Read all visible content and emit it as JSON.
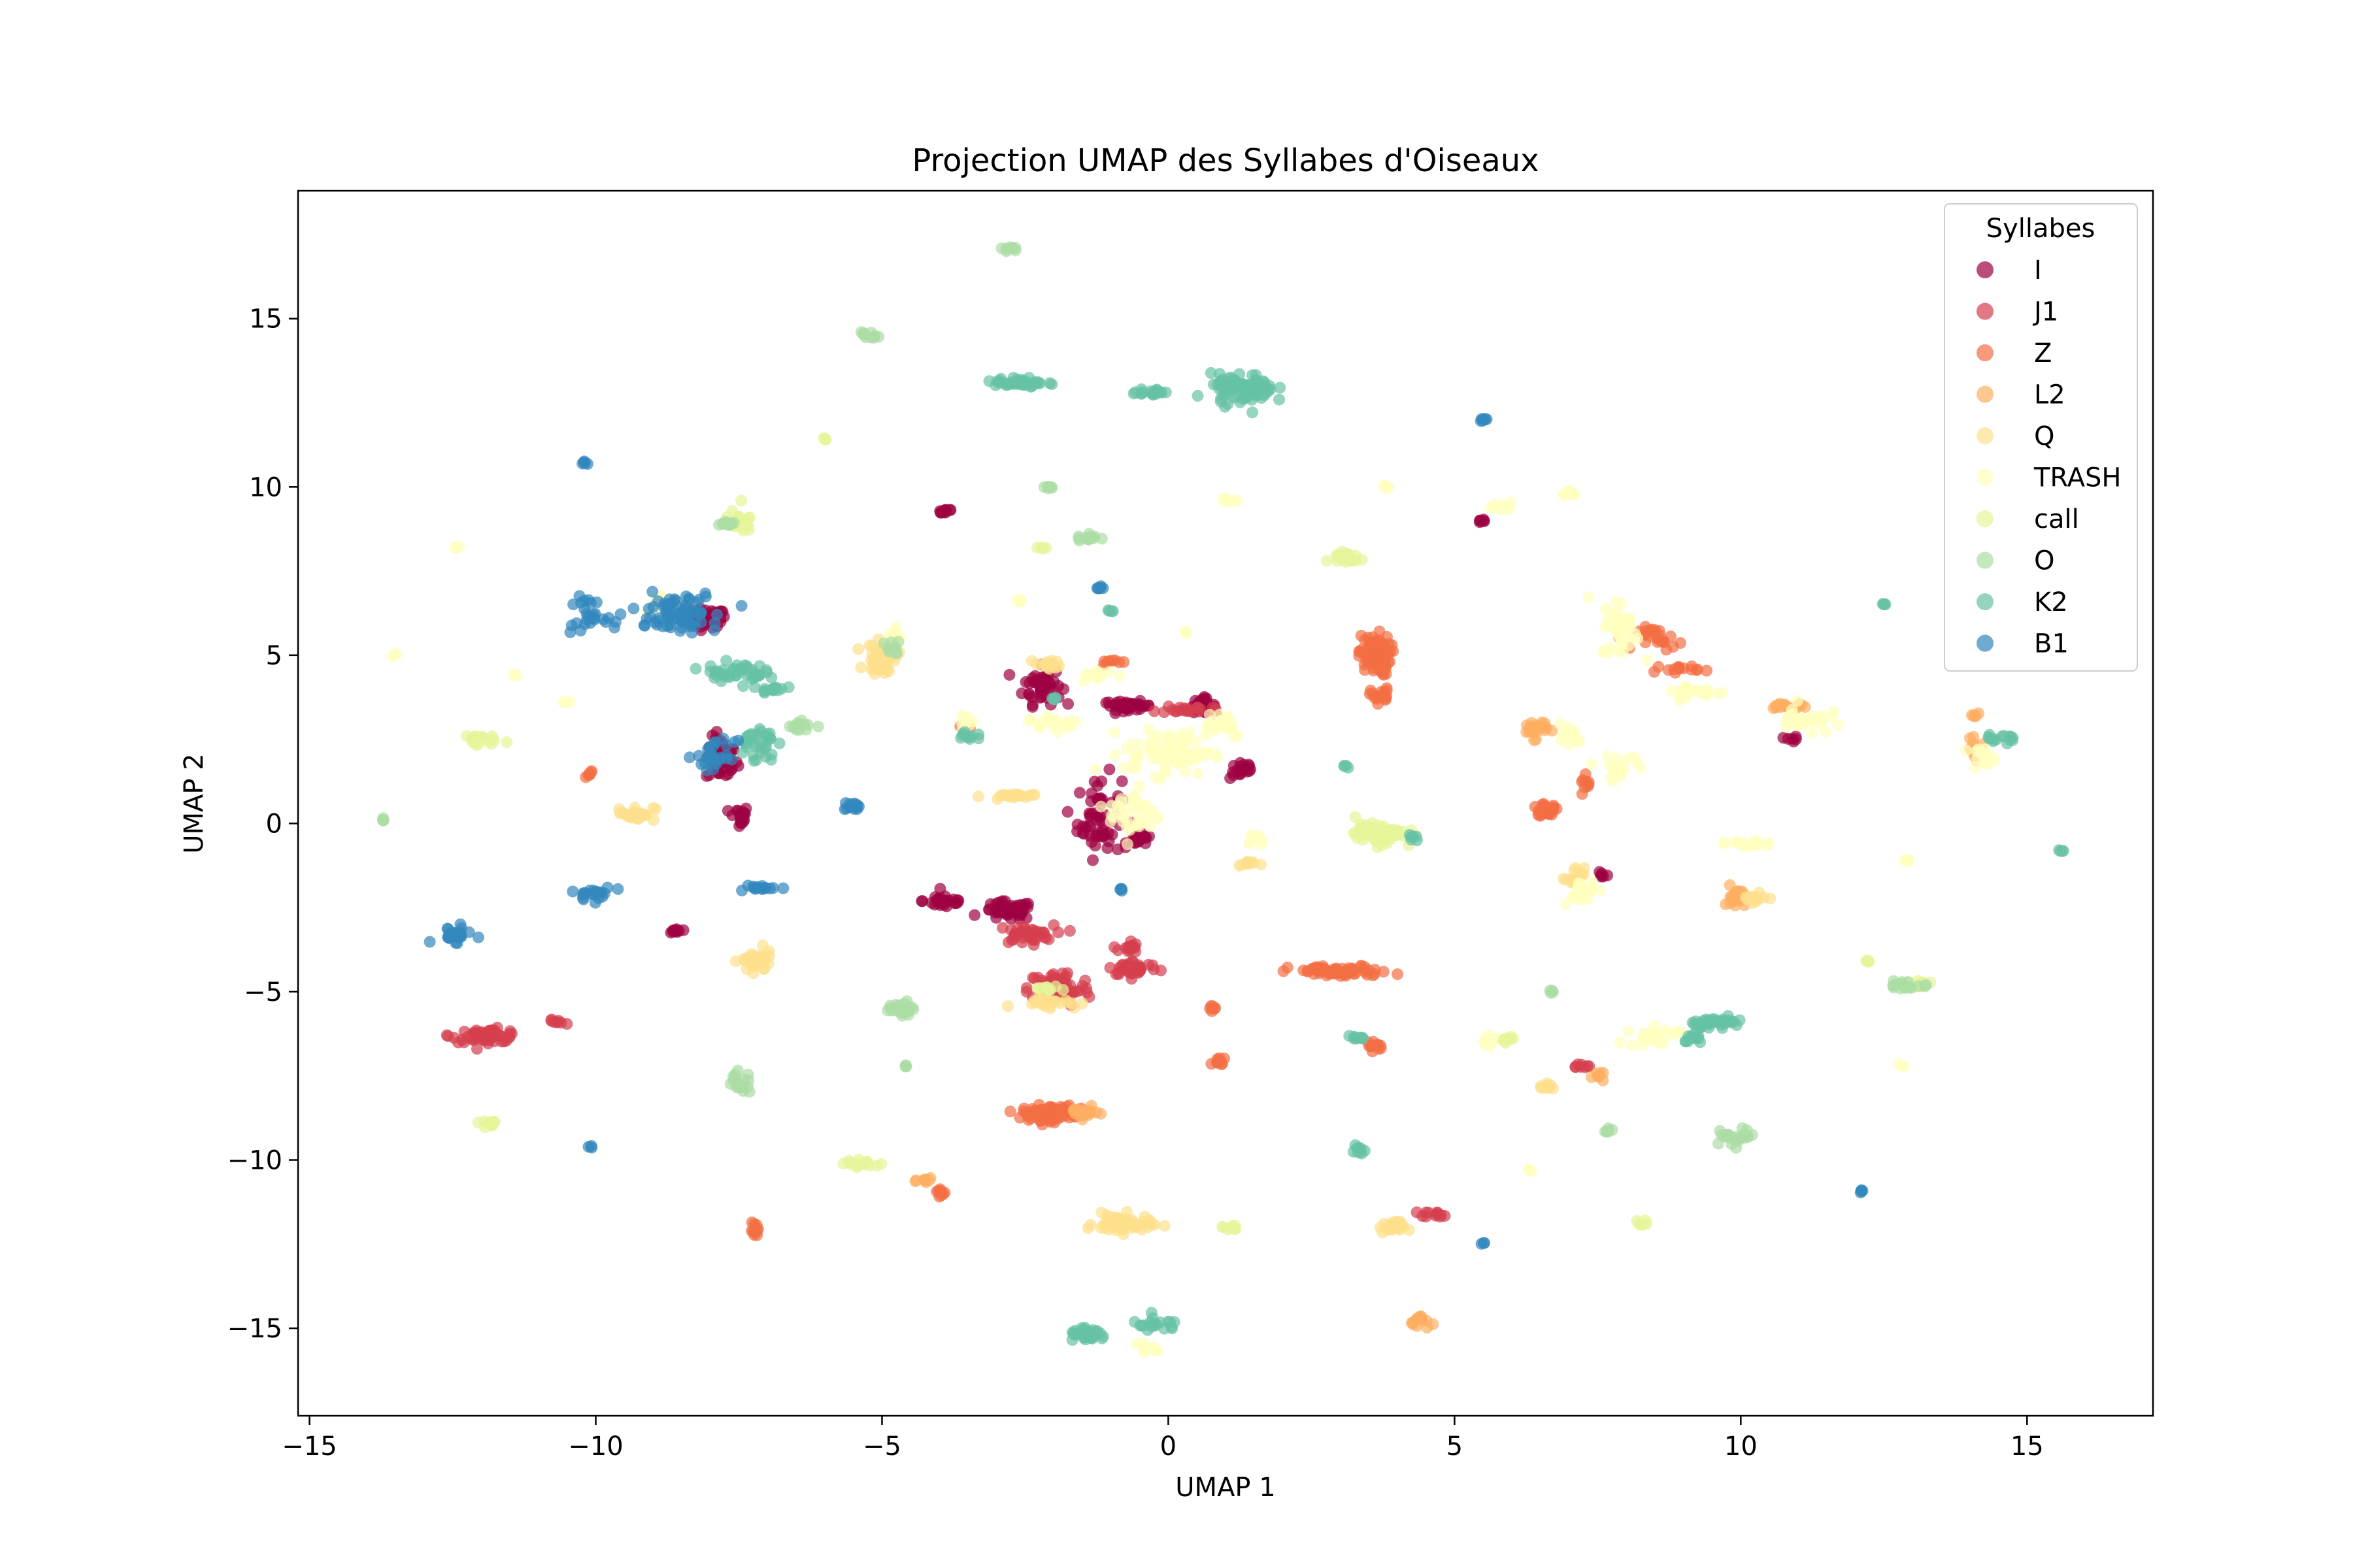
{
  "chart_data": {
    "type": "scatter",
    "title": "Projection UMAP des Syllabes d'Oiseaux",
    "xlabel": "UMAP 1",
    "ylabel": "UMAP 2",
    "xlim": [
      -15.2,
      17.2
    ],
    "ylim": [
      -17.6,
      18.8
    ],
    "x_ticks": [
      -15,
      -10,
      -5,
      0,
      5,
      10,
      15
    ],
    "x_tick_labels": [
      "−15",
      "−10",
      "−5",
      "0",
      "5",
      "10",
      "15"
    ],
    "y_ticks": [
      -15,
      -10,
      -5,
      0,
      5,
      10,
      15
    ],
    "y_tick_labels": [
      "−15",
      "−10",
      "−5",
      "0",
      "5",
      "10",
      "15"
    ],
    "grid": false,
    "legend": {
      "title": "Syllabes",
      "placement": "top-right"
    },
    "series": [
      {
        "name": "I",
        "color": "#9e0142",
        "clusters": [
          [
            -8.1,
            6.1,
            0.35,
            0.25,
            70
          ],
          [
            -7.8,
            1.9,
            0.25,
            0.6,
            50
          ],
          [
            -7.5,
            0.2,
            0.15,
            0.3,
            20
          ],
          [
            -3.9,
            9.3,
            0.15,
            0.1,
            12
          ],
          [
            -2.2,
            4.1,
            0.3,
            0.5,
            50
          ],
          [
            -1.2,
            0.2,
            0.35,
            1.1,
            60
          ],
          [
            -0.7,
            3.5,
            0.4,
            0.12,
            40
          ],
          [
            0.6,
            3.5,
            0.2,
            0.2,
            25
          ],
          [
            1.3,
            1.6,
            0.2,
            0.25,
            20
          ],
          [
            -3.9,
            -2.3,
            0.35,
            0.2,
            30
          ],
          [
            -2.8,
            -2.6,
            0.4,
            0.25,
            50
          ],
          [
            -0.5,
            -0.5,
            0.2,
            0.15,
            20
          ],
          [
            -8.6,
            -3.2,
            0.1,
            0.08,
            10
          ],
          [
            5.5,
            9.0,
            0.1,
            0.05,
            6
          ],
          [
            10.9,
            2.5,
            0.1,
            0.08,
            6
          ],
          [
            7.6,
            -1.5,
            0.08,
            0.1,
            6
          ]
        ]
      },
      {
        "name": "J1",
        "color": "#d53e4f",
        "clusters": [
          [
            -11.9,
            -6.3,
            0.55,
            0.18,
            55
          ],
          [
            -10.7,
            -5.9,
            0.15,
            0.06,
            8
          ],
          [
            -2.5,
            -3.3,
            0.45,
            0.25,
            40
          ],
          [
            -1.9,
            -4.9,
            0.5,
            0.5,
            60
          ],
          [
            -0.6,
            -4.3,
            0.4,
            0.2,
            40
          ],
          [
            -0.7,
            -3.7,
            0.15,
            0.2,
            15
          ],
          [
            0.3,
            3.4,
            0.4,
            0.1,
            20
          ],
          [
            4.7,
            -11.6,
            0.25,
            0.08,
            12
          ],
          [
            7.2,
            -7.2,
            0.15,
            0.06,
            8
          ]
        ]
      },
      {
        "name": "Z",
        "color": "#f46d43",
        "clusters": [
          [
            3.6,
            5.0,
            0.25,
            0.55,
            90
          ],
          [
            3.7,
            3.8,
            0.15,
            0.2,
            20
          ],
          [
            3.0,
            -4.4,
            0.8,
            0.15,
            70
          ],
          [
            -2.1,
            -8.6,
            0.4,
            0.2,
            90
          ],
          [
            -7.2,
            -12.1,
            0.08,
            0.2,
            10
          ],
          [
            -4.0,
            -11.0,
            0.1,
            0.15,
            8
          ],
          [
            3.6,
            -6.6,
            0.12,
            0.12,
            12
          ],
          [
            0.9,
            -7.1,
            0.12,
            0.15,
            12
          ],
          [
            0.8,
            -5.5,
            0.08,
            0.1,
            6
          ],
          [
            -10.1,
            1.5,
            0.1,
            0.08,
            6
          ],
          [
            8.6,
            5.5,
            0.35,
            0.3,
            25
          ],
          [
            8.9,
            4.6,
            0.35,
            0.1,
            15
          ],
          [
            6.6,
            0.4,
            0.2,
            0.15,
            30
          ],
          [
            7.3,
            1.2,
            0.1,
            0.2,
            10
          ],
          [
            -1.0,
            4.8,
            0.2,
            0.08,
            8
          ],
          [
            -3.5,
            2.9,
            0.1,
            0.08,
            6
          ]
        ]
      },
      {
        "name": "L2",
        "color": "#fdae61",
        "clusters": [
          [
            6.4,
            2.8,
            0.2,
            0.25,
            25
          ],
          [
            9.9,
            -2.2,
            0.15,
            0.3,
            20
          ],
          [
            4.4,
            -14.8,
            0.15,
            0.2,
            15
          ],
          [
            -1.5,
            -8.6,
            0.25,
            0.15,
            20
          ],
          [
            10.8,
            3.5,
            0.35,
            0.1,
            18
          ],
          [
            14.1,
            2.2,
            0.15,
            0.25,
            12
          ],
          [
            7.5,
            -7.5,
            0.15,
            0.1,
            8
          ],
          [
            -4.2,
            -10.6,
            0.15,
            0.1,
            8
          ],
          [
            14.1,
            3.2,
            0.06,
            0.06,
            5
          ]
        ]
      },
      {
        "name": "Q",
        "color": "#fee08b",
        "clusters": [
          [
            -7.2,
            -4.1,
            0.25,
            0.3,
            40
          ],
          [
            -0.8,
            -11.9,
            0.45,
            0.25,
            60
          ],
          [
            -5.0,
            4.9,
            0.25,
            0.4,
            50
          ],
          [
            -9.3,
            0.3,
            0.3,
            0.2,
            25
          ],
          [
            -2.1,
            -5.3,
            0.5,
            0.15,
            25
          ],
          [
            -2.8,
            0.8,
            0.4,
            0.08,
            20
          ],
          [
            10.2,
            -2.2,
            0.2,
            0.2,
            15
          ],
          [
            3.9,
            -12.0,
            0.2,
            0.15,
            20
          ],
          [
            1.4,
            -1.2,
            0.15,
            0.1,
            10
          ],
          [
            7.1,
            -1.6,
            0.15,
            0.25,
            15
          ],
          [
            -2.1,
            4.7,
            0.2,
            0.15,
            15
          ],
          [
            6.6,
            -7.8,
            0.15,
            0.1,
            10
          ]
        ]
      },
      {
        "name": "TRASH",
        "color": "#ffffbf",
        "clusters": [
          [
            0.0,
            2.1,
            0.7,
            0.6,
            80
          ],
          [
            -0.6,
            0.3,
            0.4,
            0.7,
            40
          ],
          [
            0.9,
            3.0,
            0.4,
            0.4,
            30
          ],
          [
            -2.0,
            3.0,
            0.4,
            0.2,
            20
          ],
          [
            -3.5,
            3.0,
            0.1,
            0.2,
            10
          ],
          [
            -1.2,
            4.4,
            0.3,
            0.15,
            15
          ],
          [
            7.9,
            5.8,
            0.3,
            0.8,
            40
          ],
          [
            9.2,
            3.9,
            0.5,
            0.2,
            25
          ],
          [
            11.1,
            3.1,
            0.4,
            0.4,
            30
          ],
          [
            7.9,
            1.7,
            0.4,
            0.3,
            20
          ],
          [
            7.0,
            2.6,
            0.2,
            0.3,
            15
          ],
          [
            10.1,
            -0.6,
            0.5,
            0.1,
            20
          ],
          [
            7.2,
            -2.0,
            0.3,
            0.3,
            20
          ],
          [
            8.5,
            -6.3,
            0.4,
            0.3,
            25
          ],
          [
            14.2,
            2.0,
            0.2,
            0.2,
            15
          ],
          [
            7.0,
            9.8,
            0.15,
            0.08,
            8
          ],
          [
            1.1,
            9.6,
            0.15,
            0.06,
            8
          ],
          [
            5.8,
            9.4,
            0.2,
            0.1,
            10
          ],
          [
            -8.8,
            6.5,
            0.3,
            0.4,
            20
          ],
          [
            -12.4,
            8.2,
            0.05,
            0.05,
            3
          ],
          [
            -13.5,
            5.0,
            0.05,
            0.05,
            3
          ],
          [
            -11.4,
            4.4,
            0.05,
            0.05,
            3
          ],
          [
            -10.5,
            3.6,
            0.05,
            0.05,
            3
          ],
          [
            -4.8,
            5.6,
            0.15,
            0.2,
            10
          ],
          [
            3.8,
            10.0,
            0.05,
            0.05,
            4
          ],
          [
            0.3,
            5.7,
            0.05,
            0.05,
            4
          ],
          [
            -2.6,
            6.6,
            0.05,
            0.05,
            4
          ],
          [
            -0.4,
            -15.6,
            0.15,
            0.2,
            10
          ],
          [
            1.5,
            -0.5,
            0.15,
            0.15,
            8
          ],
          [
            5.6,
            -6.4,
            0.15,
            0.2,
            10
          ],
          [
            12.9,
            -1.1,
            0.05,
            0.05,
            4
          ],
          [
            12.8,
            -7.2,
            0.05,
            0.05,
            3
          ],
          [
            6.3,
            -10.3,
            0.05,
            0.05,
            3
          ]
        ]
      },
      {
        "name": "call",
        "color": "#e6f598",
        "clusters": [
          [
            3.7,
            -0.3,
            0.4,
            0.25,
            80
          ],
          [
            -12.1,
            2.5,
            0.3,
            0.15,
            20
          ],
          [
            3.1,
            7.9,
            0.3,
            0.2,
            20
          ],
          [
            -11.9,
            -8.9,
            0.2,
            0.1,
            12
          ],
          [
            -5.3,
            -10.1,
            0.3,
            0.1,
            15
          ],
          [
            13.0,
            -4.8,
            0.4,
            0.12,
            20
          ],
          [
            -7.5,
            9.0,
            0.2,
            0.3,
            25
          ],
          [
            5.9,
            -6.5,
            0.15,
            0.15,
            8
          ],
          [
            -6.0,
            11.4,
            0.05,
            0.05,
            4
          ],
          [
            -2.1,
            -4.9,
            0.2,
            0.1,
            10
          ],
          [
            1.1,
            -12.0,
            0.15,
            0.1,
            8
          ],
          [
            8.3,
            -11.9,
            0.1,
            0.08,
            6
          ],
          [
            -2.2,
            8.2,
            0.1,
            0.06,
            5
          ],
          [
            12.2,
            -4.1,
            0.05,
            0.05,
            4
          ]
        ]
      },
      {
        "name": "O",
        "color": "#abdda4",
        "clusters": [
          [
            -2.8,
            17.1,
            0.1,
            0.08,
            8
          ],
          [
            -5.2,
            14.5,
            0.15,
            0.1,
            10
          ],
          [
            -1.4,
            8.5,
            0.2,
            0.15,
            12
          ],
          [
            -2.1,
            10.0,
            0.08,
            0.06,
            6
          ],
          [
            -7.5,
            -7.7,
            0.2,
            0.3,
            20
          ],
          [
            -4.6,
            -5.5,
            0.25,
            0.2,
            20
          ],
          [
            9.9,
            -9.3,
            0.35,
            0.2,
            25
          ],
          [
            12.9,
            -4.8,
            0.35,
            0.12,
            20
          ],
          [
            -6.4,
            2.9,
            0.2,
            0.15,
            12
          ],
          [
            -13.7,
            0.1,
            0.05,
            0.05,
            4
          ],
          [
            6.7,
            -5.0,
            0.05,
            0.05,
            4
          ],
          [
            7.7,
            -9.1,
            0.08,
            0.06,
            6
          ],
          [
            -4.6,
            -7.2,
            0.05,
            0.05,
            4
          ],
          [
            -4.8,
            5.2,
            0.15,
            0.2,
            10
          ],
          [
            -7.7,
            8.9,
            0.15,
            0.1,
            10
          ]
        ]
      },
      {
        "name": "K2",
        "color": "#66c2a5",
        "clusters": [
          [
            -7.6,
            4.5,
            0.5,
            0.25,
            45
          ],
          [
            -6.9,
            4.0,
            0.2,
            0.1,
            15
          ],
          [
            -7.2,
            2.4,
            0.3,
            0.5,
            35
          ],
          [
            -2.6,
            13.1,
            0.4,
            0.15,
            40
          ],
          [
            1.3,
            12.9,
            0.5,
            0.4,
            90
          ],
          [
            -0.3,
            12.8,
            0.3,
            0.1,
            20
          ],
          [
            9.6,
            -5.9,
            0.4,
            0.12,
            40
          ],
          [
            9.2,
            -6.4,
            0.15,
            0.15,
            15
          ],
          [
            -1.4,
            -15.2,
            0.3,
            0.15,
            40
          ],
          [
            -0.2,
            -14.9,
            0.4,
            0.2,
            20
          ],
          [
            3.3,
            -9.7,
            0.15,
            0.1,
            10
          ],
          [
            3.3,
            -6.4,
            0.2,
            0.08,
            10
          ],
          [
            14.5,
            2.5,
            0.4,
            0.15,
            15
          ],
          [
            -3.5,
            2.6,
            0.15,
            0.2,
            10
          ],
          [
            12.5,
            6.5,
            0.05,
            0.05,
            4
          ],
          [
            15.6,
            -0.8,
            0.05,
            0.05,
            4
          ],
          [
            3.1,
            1.7,
            0.05,
            0.05,
            4
          ],
          [
            -1.0,
            6.3,
            0.05,
            0.05,
            4
          ],
          [
            4.3,
            -0.4,
            0.1,
            0.1,
            6
          ],
          [
            -2.0,
            3.7,
            0.05,
            0.05,
            4
          ]
        ]
      },
      {
        "name": "B1",
        "color": "#3288bd",
        "clusters": [
          [
            -8.6,
            6.3,
            0.7,
            0.5,
            80
          ],
          [
            -10.2,
            6.2,
            0.3,
            0.4,
            25
          ],
          [
            -7.9,
            2.0,
            0.3,
            0.4,
            30
          ],
          [
            -10.2,
            10.7,
            0.05,
            0.05,
            5
          ],
          [
            -7.1,
            -1.9,
            0.3,
            0.1,
            15
          ],
          [
            -5.5,
            0.5,
            0.15,
            0.1,
            15
          ],
          [
            -10.0,
            -2.1,
            0.3,
            0.2,
            20
          ],
          [
            -12.5,
            -3.3,
            0.3,
            0.2,
            25
          ],
          [
            -1.2,
            7.0,
            0.08,
            0.06,
            6
          ],
          [
            5.5,
            12.0,
            0.1,
            0.05,
            6
          ],
          [
            12.1,
            -10.9,
            0.05,
            0.05,
            4
          ],
          [
            -10.1,
            -9.6,
            0.05,
            0.05,
            3
          ],
          [
            -0.8,
            -2.0,
            0.08,
            0.08,
            4
          ],
          [
            5.5,
            -12.5,
            0.05,
            0.05,
            3
          ]
        ]
      }
    ]
  }
}
